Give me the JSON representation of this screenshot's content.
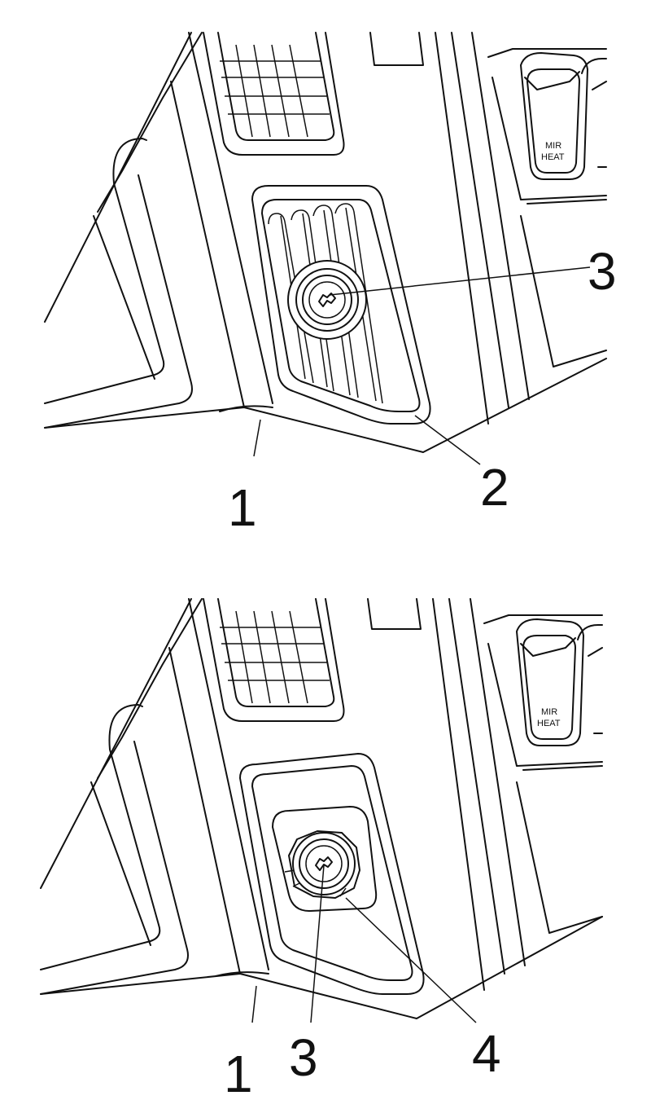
{
  "upper_panel": {
    "switch_label_line1": "MIR",
    "switch_label_line2": "HEAT",
    "callouts": {
      "c1": "1",
      "c2": "2",
      "c3": "3"
    }
  },
  "lower_panel": {
    "switch_label_line1": "MIR",
    "switch_label_line2": "HEAT",
    "callouts": {
      "c1": "1",
      "c3": "3",
      "c4": "4"
    }
  }
}
